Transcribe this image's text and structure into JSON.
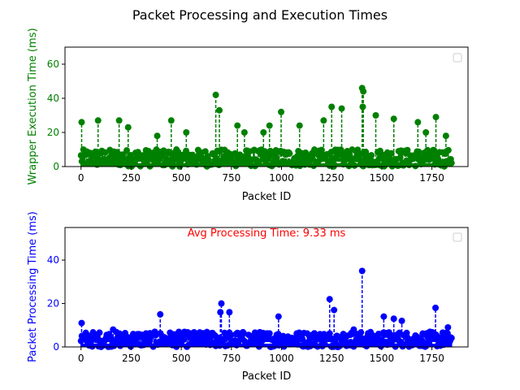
{
  "figure_title": "Packet Processing and Execution Times",
  "colors": {
    "top": "#008000",
    "bottom": "#0000ff",
    "annotation": "#ff0000",
    "axis": "#000000"
  },
  "chart_data": [
    {
      "type": "scatter",
      "marker_style": "circle markers joined by vertical dashed stems",
      "title": "",
      "xlabel": "Packet ID",
      "ylabel": "Wrapper Execution Time (ms)",
      "xlim": [
        -80,
        1930
      ],
      "ylim": [
        0,
        70
      ],
      "xticks": [
        0,
        250,
        500,
        750,
        1000,
        1250,
        1500,
        1750
      ],
      "yticks": [
        0,
        20,
        40,
        60
      ],
      "x_range": [
        0,
        1850
      ],
      "legend": "top-right (empty)",
      "grid": false,
      "series": [
        {
          "color": "#008000",
          "baseline_range": [
            0,
            10
          ],
          "peaks": [
            {
              "x": 3,
              "y": 26
            },
            {
              "x": 85,
              "y": 27
            },
            {
              "x": 190,
              "y": 27
            },
            {
              "x": 235,
              "y": 23
            },
            {
              "x": 380,
              "y": 18
            },
            {
              "x": 450,
              "y": 27
            },
            {
              "x": 525,
              "y": 20
            },
            {
              "x": 672,
              "y": 42
            },
            {
              "x": 690,
              "y": 33
            },
            {
              "x": 780,
              "y": 24
            },
            {
              "x": 815,
              "y": 20
            },
            {
              "x": 910,
              "y": 20
            },
            {
              "x": 940,
              "y": 24
            },
            {
              "x": 998,
              "y": 32
            },
            {
              "x": 1090,
              "y": 24
            },
            {
              "x": 1210,
              "y": 27
            },
            {
              "x": 1250,
              "y": 35
            },
            {
              "x": 1300,
              "y": 34
            },
            {
              "x": 1402,
              "y": 46
            },
            {
              "x": 1408,
              "y": 44
            },
            {
              "x": 1405,
              "y": 35
            },
            {
              "x": 1470,
              "y": 30
            },
            {
              "x": 1560,
              "y": 28
            },
            {
              "x": 1680,
              "y": 26
            },
            {
              "x": 1720,
              "y": 20
            },
            {
              "x": 1770,
              "y": 29
            },
            {
              "x": 1820,
              "y": 18
            }
          ]
        }
      ]
    },
    {
      "type": "scatter",
      "marker_style": "circle markers joined by vertical dashed stems",
      "title": "",
      "xlabel": "Packet ID",
      "ylabel": "Packet Processing Time (ms)",
      "annotation": "Avg Processing Time: 9.33 ms",
      "xlim": [
        -80,
        1930
      ],
      "ylim": [
        0,
        55
      ],
      "xticks": [
        0,
        250,
        500,
        750,
        1000,
        1250,
        1500,
        1750
      ],
      "yticks": [
        0,
        20,
        40
      ],
      "x_range": [
        0,
        1850
      ],
      "legend": "top-right (empty)",
      "grid": false,
      "series": [
        {
          "color": "#0000ff",
          "baseline_range": [
            0,
            7
          ],
          "peaks": [
            {
              "x": 3,
              "y": 11
            },
            {
              "x": 160,
              "y": 8
            },
            {
              "x": 395,
              "y": 15
            },
            {
              "x": 700,
              "y": 20
            },
            {
              "x": 695,
              "y": 16
            },
            {
              "x": 740,
              "y": 16
            },
            {
              "x": 985,
              "y": 14
            },
            {
              "x": 1240,
              "y": 22
            },
            {
              "x": 1262,
              "y": 17
            },
            {
              "x": 1360,
              "y": 8
            },
            {
              "x": 1402,
              "y": 35
            },
            {
              "x": 1510,
              "y": 14
            },
            {
              "x": 1560,
              "y": 13
            },
            {
              "x": 1600,
              "y": 12
            },
            {
              "x": 1768,
              "y": 18
            },
            {
              "x": 1830,
              "y": 9
            }
          ]
        }
      ]
    }
  ]
}
